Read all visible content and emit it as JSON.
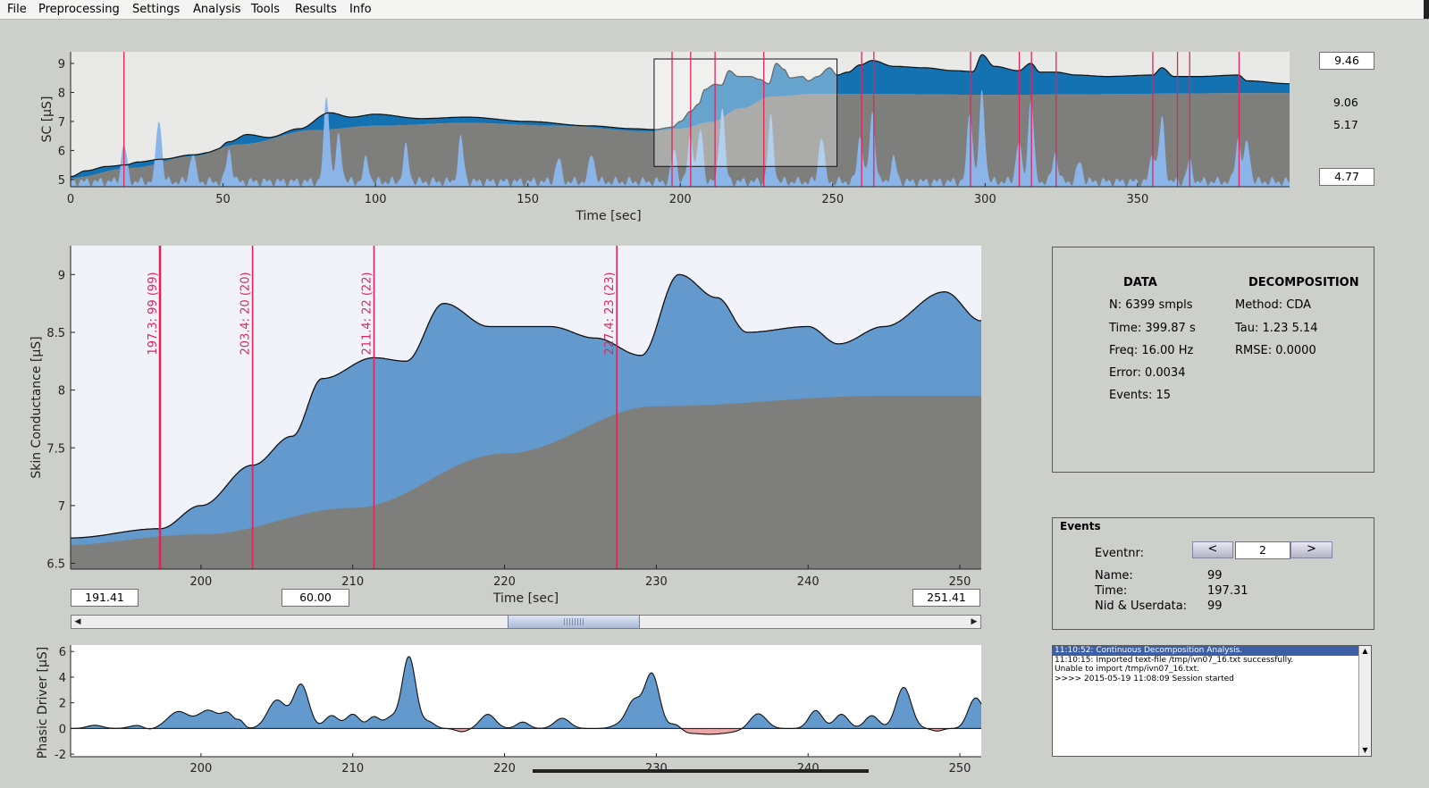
{
  "menu": [
    "File",
    "Preprocessing",
    "Settings",
    "Analysis",
    "Tools",
    "Results",
    "Info"
  ],
  "overview": {
    "ylabel": "SC [μS]",
    "xlabel": "Time [sec]",
    "xticks": [
      "0",
      "50",
      "100",
      "150",
      "200",
      "250",
      "300",
      "350"
    ],
    "yticks": [
      "9",
      "8",
      "7",
      "6",
      "5"
    ],
    "xlim": [
      0,
      399.87
    ],
    "ylim": [
      4.75,
      9.4
    ],
    "ymax_box": "9.46",
    "ymin_box": "4.77",
    "val_upper": "9.06",
    "val_lower": "5.17",
    "event_times": [
      17.5,
      197.3,
      203.4,
      211.4,
      227.4,
      259.5,
      263.5,
      295.2,
      311.2,
      315.2,
      323.3,
      355.0,
      363.1,
      367.1,
      383.3
    ],
    "zoom_window": [
      191.41,
      251.41
    ]
  },
  "main": {
    "ylabel": "Skin Conductance [μS]",
    "xlabel": "Time [sec]",
    "xticks": [
      "200",
      "210",
      "220",
      "230",
      "240",
      "250"
    ],
    "yticks": [
      "9",
      "8.5",
      "8",
      "7.5",
      "7",
      "6.5"
    ],
    "xlim": [
      191.41,
      251.41
    ],
    "ylim": [
      6.45,
      9.25
    ],
    "events": [
      {
        "label": "197.3:  99 (99)",
        "t": 197.3
      },
      {
        "label": "203.4:  20 (20)",
        "t": 203.4
      },
      {
        "label": "211.4:  22 (22)",
        "t": 211.4
      },
      {
        "label": "227.4:  23 (23)",
        "t": 227.4
      }
    ],
    "start_box": "191.41",
    "width_box": "60.00",
    "end_box": "251.41"
  },
  "driver": {
    "ylabel": "Phasic Driver [μS]",
    "xticks": [
      "200",
      "210",
      "220",
      "230",
      "240",
      "250"
    ],
    "yticks": [
      "6",
      "4",
      "2",
      "0",
      "-2"
    ],
    "xlim": [
      191.41,
      251.41
    ],
    "ylim": [
      -2.2,
      6.5
    ]
  },
  "info_panel": {
    "data_title": "DATA",
    "decomp_title": "DECOMPOSITION",
    "n": "N: 6399 smpls",
    "time": "Time: 399.87 s",
    "freq": "Freq: 16.00 Hz",
    "error": "Error: 0.0034",
    "events": "Events: 15",
    "method": "Method: CDA",
    "tau": "Tau: 1.23  5.14",
    "rmse": "RMSE: 0.0000"
  },
  "events_panel": {
    "title": "Events",
    "eventnr_label": "Eventnr:",
    "prev_label": "<",
    "next_label": ">",
    "eventnr_value": "2",
    "name_label": "Name:",
    "name_value": "99",
    "time_label": "Time:",
    "time_value": "197.31",
    "nid_label": "Nid & Userdata:",
    "nid_value": "99"
  },
  "log": [
    "11:10:52: Continuous Decomposition Analysis.",
    "11:10:15: Imported text-file /tmp/ivn07_16.txt successfully.",
    "Unable to import /tmp/ivn07_16.txt.",
    ">>>> 2015-05-19 11:08:09 Session started"
  ],
  "colors": {
    "dark_blue": "#1472b2",
    "mid_blue": "#6399cc",
    "light_blue": "#8bb5e8",
    "gray_tonic": "#7e7f7d",
    "event_red": "#e0245a",
    "overview_bg": "#e9e9e7",
    "main_bg": "#f2f2fa"
  }
}
